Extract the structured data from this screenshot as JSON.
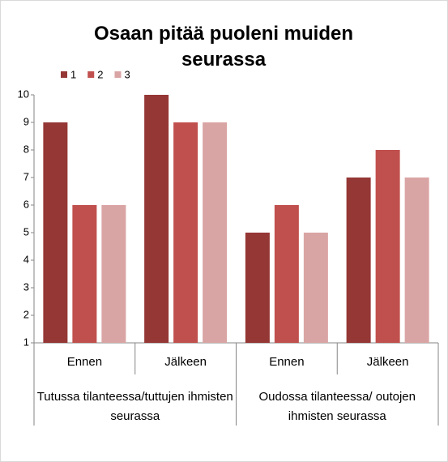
{
  "chart_data": {
    "type": "bar",
    "title": "Osaan pitää puoleni muiden seurassa",
    "categories": [
      "Ennen",
      "Jälkeen",
      "Ennen",
      "Jälkeen"
    ],
    "groups": [
      "Tutussa tilanteessa/tuttujen ihmisten seurassa",
      "Oudossa tilanteessa/ outojen ihmisten seurassa"
    ],
    "series": [
      {
        "name": "1",
        "color": "#953735",
        "values": [
          9,
          10,
          5,
          7
        ]
      },
      {
        "name": "2",
        "color": "#c0504d",
        "values": [
          6,
          9,
          6,
          8
        ]
      },
      {
        "name": "3",
        "color": "#d9a5a4",
        "values": [
          6,
          9,
          5,
          7
        ]
      }
    ],
    "ylim": [
      1,
      10
    ],
    "yticks": [
      1,
      2,
      3,
      4,
      5,
      6,
      7,
      8,
      9,
      10
    ],
    "grid": false,
    "legend": "top-left"
  }
}
